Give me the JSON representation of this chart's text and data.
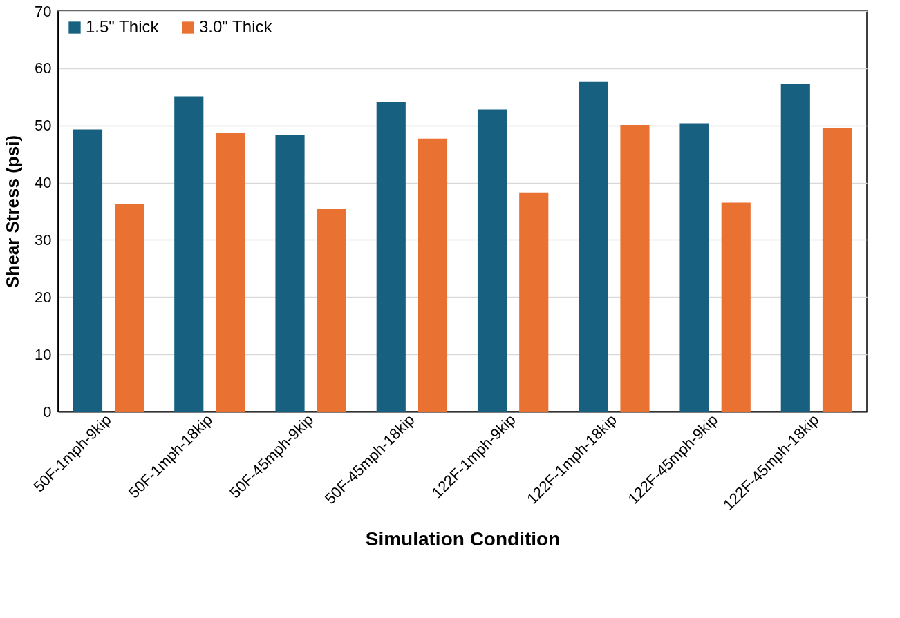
{
  "chart_data": {
    "type": "bar",
    "xlabel": "Simulation Condition",
    "ylabel": "Shear Stress (psi)",
    "categories": [
      "50F-1mph-9kip",
      "50F-1mph-18kip",
      "50F-45mph-9kip",
      "50F-45mph-18kip",
      "122F-1mph-9kip",
      "122F-1mph-18kip",
      "122F-45mph-9kip",
      "122F-45mph-18kip"
    ],
    "series": [
      {
        "name": "1.5\" Thick",
        "color": "#17607f",
        "values": [
          49.3,
          55.1,
          48.4,
          54.2,
          52.8,
          57.6,
          50.4,
          57.2
        ]
      },
      {
        "name": "3.0\" Thick",
        "color": "#e97132",
        "values": [
          36.3,
          48.7,
          35.4,
          47.7,
          38.3,
          50.1,
          36.5,
          49.6
        ]
      }
    ],
    "ylim": [
      0,
      70
    ],
    "yticks": [
      0,
      10,
      20,
      30,
      40,
      50,
      60,
      70
    ],
    "grid": "y",
    "legend": "top left"
  }
}
